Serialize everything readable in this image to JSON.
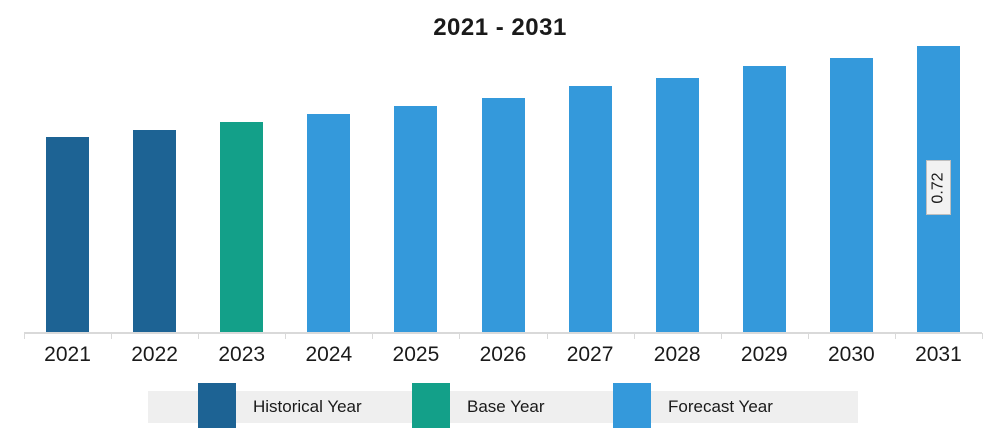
{
  "title": "2021 - 2031",
  "chart_data": {
    "type": "bar",
    "title": "2021 - 2031",
    "xlabel": "",
    "ylabel": "",
    "ylim": [
      0,
      0.8
    ],
    "grid": false,
    "legend_position": "bottom",
    "categories": [
      "2021",
      "2022",
      "2023",
      "2024",
      "2025",
      "2026",
      "2027",
      "2028",
      "2029",
      "2030",
      "2031"
    ],
    "values": [
      0.49,
      0.51,
      0.53,
      0.55,
      0.57,
      0.59,
      0.62,
      0.64,
      0.67,
      0.69,
      0.72
    ],
    "bar_periods": [
      "historical",
      "historical",
      "base",
      "forecast",
      "forecast",
      "forecast",
      "forecast",
      "forecast",
      "forecast",
      "forecast",
      "forecast"
    ],
    "annotations": [
      {
        "category": "2031",
        "text": "0.72",
        "rotation": -90
      }
    ]
  },
  "legend": {
    "items": [
      {
        "label": "Historical Year",
        "period": "historical"
      },
      {
        "label": "Base Year",
        "period": "base"
      },
      {
        "label": "Forecast Year",
        "period": "forecast"
      }
    ]
  },
  "colors": {
    "historical": "#1D6394",
    "base": "#13A089",
    "forecast": "#3499DB",
    "axis": "#D9D9D9",
    "legend_bg": "#EFEFEF",
    "annotation_bg": "#F2F2F2",
    "annotation_border": "#BFBFBF",
    "text": "#1A1A1A"
  }
}
